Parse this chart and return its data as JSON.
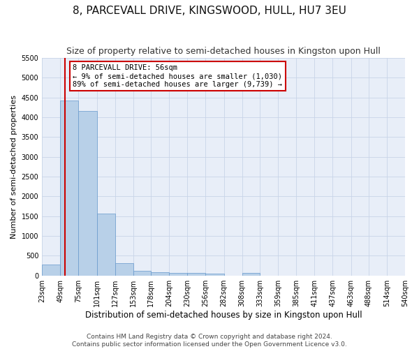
{
  "title": "8, PARCEVALL DRIVE, KINGSWOOD, HULL, HU7 3EU",
  "subtitle": "Size of property relative to semi-detached houses in Kingston upon Hull",
  "xlabel": "Distribution of semi-detached houses by size in Kingston upon Hull",
  "ylabel": "Number of semi-detached properties",
  "footer_line1": "Contains HM Land Registry data © Crown copyright and database right 2024.",
  "footer_line2": "Contains public sector information licensed under the Open Government Licence v3.0.",
  "annotation_title": "8 PARCEVALL DRIVE: 56sqm",
  "annotation_line1": "← 9% of semi-detached houses are smaller (1,030)",
  "annotation_line2": "89% of semi-detached houses are larger (9,739) →",
  "property_size": 56,
  "bar_edges": [
    23,
    49,
    75,
    101,
    127,
    153,
    178,
    204,
    230,
    256,
    282,
    308,
    333,
    359,
    385,
    411,
    437,
    463,
    488,
    514,
    540
  ],
  "bar_values": [
    275,
    4430,
    4160,
    1560,
    320,
    120,
    80,
    65,
    60,
    55,
    0,
    60,
    0,
    0,
    0,
    0,
    0,
    0,
    0,
    0
  ],
  "bar_color": "#b8d0e8",
  "bar_edge_color": "#6699cc",
  "red_line_color": "#cc0000",
  "annotation_box_color": "#cc0000",
  "ylim": [
    0,
    5500
  ],
  "yticks": [
    0,
    500,
    1000,
    1500,
    2000,
    2500,
    3000,
    3500,
    4000,
    4500,
    5000,
    5500
  ],
  "background_color": "#e8eef8",
  "grid_color": "#c8d4e8",
  "title_fontsize": 11,
  "subtitle_fontsize": 9,
  "xlabel_fontsize": 8.5,
  "ylabel_fontsize": 8,
  "tick_fontsize": 7,
  "footer_fontsize": 6.5,
  "annotation_fontsize": 7.5
}
